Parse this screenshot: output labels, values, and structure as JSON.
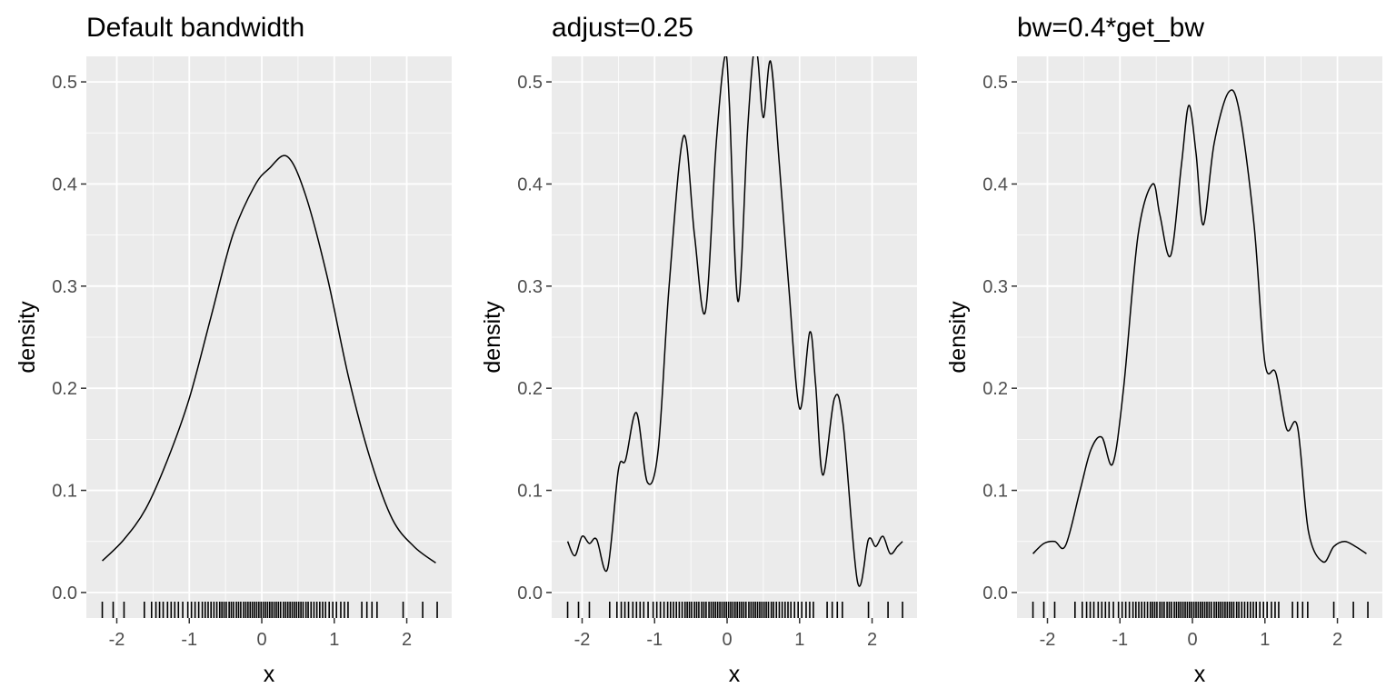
{
  "chart_data": [
    {
      "type": "line",
      "title": "Default bandwidth",
      "xlabel": "x",
      "ylabel": "density",
      "xlim": [
        -2.42,
        2.62
      ],
      "ylim": [
        -0.025,
        0.525
      ],
      "xticks": [
        -2,
        -1,
        0,
        1,
        2
      ],
      "xtick_labels": [
        "-2",
        "-1",
        "0",
        "1",
        "2"
      ],
      "yticks": [
        0.0,
        0.1,
        0.2,
        0.3,
        0.4,
        0.5
      ],
      "ytick_labels": [
        "0.0",
        "0.1",
        "0.2",
        "0.3",
        "0.4",
        "0.5"
      ],
      "grid": true,
      "series": [
        {
          "x": [
            -2.2,
            -1.9,
            -1.6,
            -1.3,
            -1.0,
            -0.7,
            -0.4,
            -0.1,
            0.1,
            0.35,
            0.6,
            0.9,
            1.2,
            1.5,
            1.8,
            2.1,
            2.4
          ],
          "y": [
            0.031,
            0.052,
            0.082,
            0.13,
            0.19,
            0.27,
            0.35,
            0.398,
            0.415,
            0.427,
            0.39,
            0.31,
            0.21,
            0.13,
            0.072,
            0.045,
            0.029
          ]
        }
      ]
    },
    {
      "type": "line",
      "title": "adjust=0.25",
      "xlabel": "x",
      "ylabel": "density",
      "xlim": [
        -2.42,
        2.62
      ],
      "ylim": [
        -0.025,
        0.525
      ],
      "xticks": [
        -2,
        -1,
        0,
        1,
        2
      ],
      "xtick_labels": [
        "-2",
        "-1",
        "0",
        "1",
        "2"
      ],
      "yticks": [
        0.0,
        0.1,
        0.2,
        0.3,
        0.4,
        0.5
      ],
      "ytick_labels": [
        "0.0",
        "0.1",
        "0.2",
        "0.3",
        "0.4",
        "0.5"
      ],
      "grid": true,
      "series": [
        {
          "x": [
            -2.2,
            -2.1,
            -2.0,
            -1.9,
            -1.8,
            -1.65,
            -1.5,
            -1.4,
            -1.25,
            -1.1,
            -0.95,
            -0.8,
            -0.6,
            -0.45,
            -0.3,
            -0.15,
            -0.03,
            0.03,
            0.15,
            0.28,
            0.36,
            0.42,
            0.5,
            0.6,
            0.72,
            0.85,
            1.0,
            1.14,
            1.22,
            1.32,
            1.48,
            1.6,
            1.8,
            1.95,
            2.05,
            2.15,
            2.25,
            2.35,
            2.42
          ],
          "y": [
            0.05,
            0.036,
            0.055,
            0.048,
            0.052,
            0.023,
            0.12,
            0.13,
            0.176,
            0.108,
            0.14,
            0.3,
            0.447,
            0.35,
            0.275,
            0.44,
            0.525,
            0.48,
            0.285,
            0.45,
            0.525,
            0.525,
            0.465,
            0.52,
            0.42,
            0.3,
            0.18,
            0.255,
            0.205,
            0.115,
            0.19,
            0.165,
            0.01,
            0.052,
            0.045,
            0.055,
            0.038,
            0.045,
            0.05
          ]
        }
      ]
    },
    {
      "type": "line",
      "title": "bw=0.4*get_bw",
      "xlabel": "x",
      "ylabel": "density",
      "xlim": [
        -2.42,
        2.62
      ],
      "ylim": [
        -0.025,
        0.525
      ],
      "xticks": [
        -2,
        -1,
        0,
        1,
        2
      ],
      "xtick_labels": [
        "-2",
        "-1",
        "0",
        "1",
        "2"
      ],
      "yticks": [
        0.0,
        0.1,
        0.2,
        0.3,
        0.4,
        0.5
      ],
      "ytick_labels": [
        "0.0",
        "0.1",
        "0.2",
        "0.3",
        "0.4",
        "0.5"
      ],
      "grid": true,
      "series": [
        {
          "x": [
            -2.2,
            -2.05,
            -1.9,
            -1.75,
            -1.55,
            -1.4,
            -1.25,
            -1.1,
            -0.95,
            -0.75,
            -0.55,
            -0.45,
            -0.3,
            -0.15,
            -0.05,
            0.05,
            0.15,
            0.3,
            0.5,
            0.65,
            0.85,
            1.0,
            1.15,
            1.3,
            1.45,
            1.6,
            1.8,
            1.95,
            2.1,
            2.25,
            2.4
          ],
          "y": [
            0.038,
            0.048,
            0.05,
            0.046,
            0.1,
            0.14,
            0.152,
            0.126,
            0.2,
            0.35,
            0.4,
            0.37,
            0.33,
            0.42,
            0.477,
            0.43,
            0.36,
            0.44,
            0.49,
            0.47,
            0.36,
            0.225,
            0.215,
            0.16,
            0.162,
            0.06,
            0.03,
            0.045,
            0.05,
            0.045,
            0.038
          ]
        }
      ]
    }
  ],
  "rug": [
    -2.2,
    -2.05,
    -1.9,
    -1.62,
    -1.52,
    -1.46,
    -1.41,
    -1.36,
    -1.3,
    -1.25,
    -1.2,
    -1.15,
    -1.09,
    -1.02,
    -0.97,
    -0.92,
    -0.87,
    -0.82,
    -0.78,
    -0.74,
    -0.7,
    -0.66,
    -0.62,
    -0.58,
    -0.55,
    -0.52,
    -0.49,
    -0.45,
    -0.42,
    -0.39,
    -0.35,
    -0.32,
    -0.29,
    -0.25,
    -0.22,
    -0.19,
    -0.16,
    -0.13,
    -0.1,
    -0.07,
    -0.04,
    -0.01,
    0.02,
    0.05,
    0.08,
    0.11,
    0.14,
    0.17,
    0.2,
    0.23,
    0.26,
    0.3,
    0.33,
    0.36,
    0.39,
    0.42,
    0.45,
    0.48,
    0.51,
    0.54,
    0.57,
    0.61,
    0.64,
    0.68,
    0.72,
    0.76,
    0.8,
    0.84,
    0.88,
    0.93,
    0.98,
    1.03,
    1.09,
    1.14,
    1.19,
    1.38,
    1.45,
    1.52,
    1.59,
    1.95,
    2.22,
    2.42
  ]
}
